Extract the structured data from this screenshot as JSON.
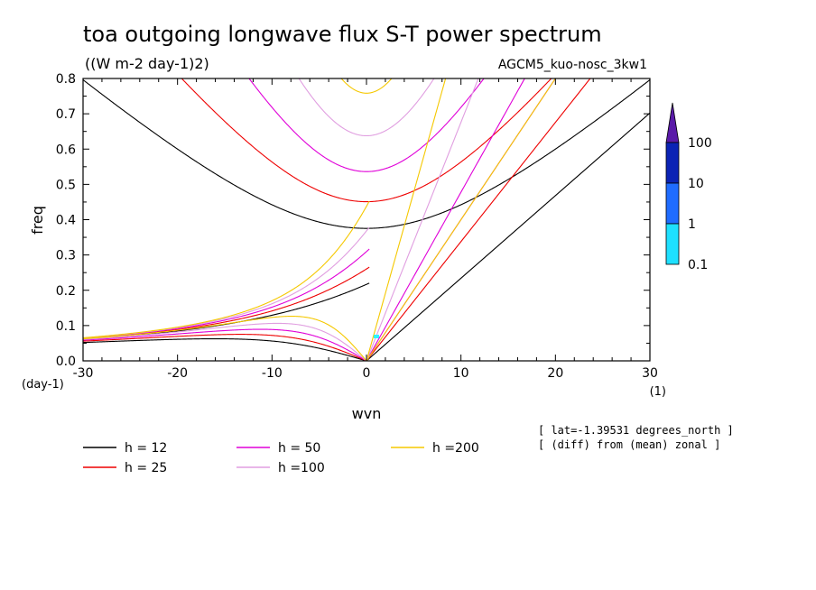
{
  "title": "toa outgoing longwave flux S-T power spectrum",
  "units": "((W m-2 day-1)2)",
  "model": "AGCM5_kuo-nosc_3kw1",
  "info_lines": [
    "[ lat=-1.39531 degrees_north ]",
    "[ (diff) from (mean) zonal ]"
  ],
  "colorbar": {
    "labels": [
      "100",
      "10",
      "1",
      "0.1"
    ],
    "colors": [
      "#5a1aa8",
      "#0b23b5",
      "#1f6cff",
      "#1ee0ff",
      "#2ef5ff"
    ]
  },
  "chart_data": {
    "type": "line",
    "title": "toa outgoing longwave flux S-T power spectrum",
    "xlabel": "wvn",
    "ylabel": "freq",
    "x_unit": "(1)",
    "y_unit": "(day-1)",
    "xlim": [
      -30,
      30
    ],
    "ylim": [
      0,
      0.8
    ],
    "x_ticks": [
      "-30",
      "-20",
      "-10",
      "0",
      "10",
      "20",
      "30"
    ],
    "y_ticks": [
      "0.0",
      "0.1",
      "0.2",
      "0.3",
      "0.4",
      "0.5",
      "0.6",
      "0.7",
      "0.8"
    ],
    "grid": false,
    "legend_position": "bottom-left",
    "series": [
      {
        "name": "h = 12",
        "h": 12,
        "color": "#000000"
      },
      {
        "name": "h = 25",
        "h": 25,
        "color": "#ee0000"
      },
      {
        "name": "h = 50",
        "h": 50,
        "color": "#e000d8"
      },
      {
        "name": "h =100",
        "h": 100,
        "color": "#e09ee0"
      },
      {
        "name": "h =200",
        "h": 200,
        "color": "#f5c800"
      }
    ]
  }
}
